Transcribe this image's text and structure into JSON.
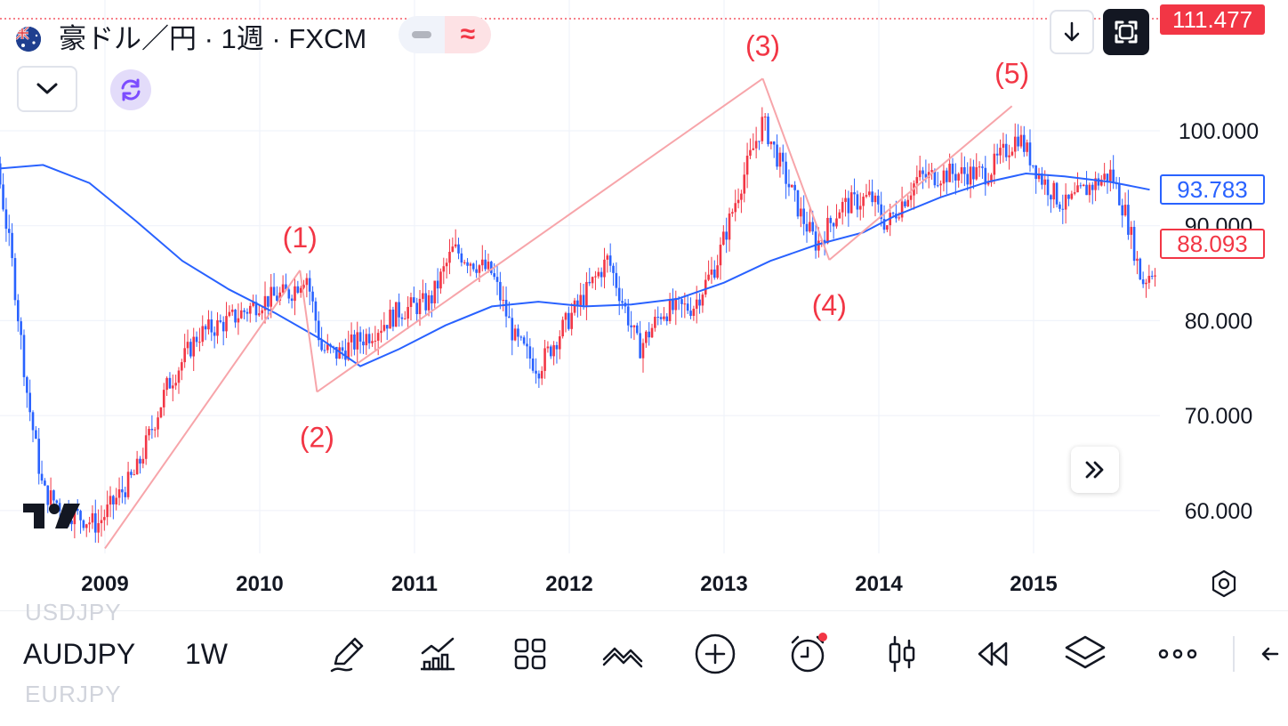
{
  "header": {
    "title": "豪ドル／円 · 1週 · FXCM",
    "flag_icon": "australia-flag-icon",
    "toggle_minus_icon": "minus-icon",
    "toggle_approx": "≈"
  },
  "price_tags": {
    "last": "111.477",
    "ma": "93.783",
    "current": "88.093"
  },
  "colors": {
    "up": "#f23645",
    "down": "#2962ff",
    "ma": "#2962ff",
    "wave": "#f7a5aa",
    "wave_label": "#f23645",
    "grid": "#f0f3fa"
  },
  "chart_data": {
    "type": "candlestick",
    "symbol": "AUDJPY",
    "interval": "1W",
    "y_axis_ticks": [
      "100.000",
      "90.000",
      "80.000",
      "70.000",
      "60.000"
    ],
    "y_axis_values": [
      100,
      90,
      80,
      70,
      60
    ],
    "x_axis_ticks": [
      "2009",
      "2010",
      "2011",
      "2012",
      "2013",
      "2014",
      "2015"
    ],
    "ylim": [
      55.5,
      111.5
    ],
    "moving_average": [
      {
        "t": 2008.0,
        "v": 93.2
      },
      {
        "t": 2008.3,
        "v": 96.0
      },
      {
        "t": 2008.6,
        "v": 96.4
      },
      {
        "t": 2008.9,
        "v": 94.5
      },
      {
        "t": 2009.2,
        "v": 90.5
      },
      {
        "t": 2009.5,
        "v": 86.3
      },
      {
        "t": 2009.8,
        "v": 83.3
      },
      {
        "t": 2010.1,
        "v": 80.8
      },
      {
        "t": 2010.4,
        "v": 78.0
      },
      {
        "t": 2010.65,
        "v": 75.2
      },
      {
        "t": 2010.9,
        "v": 77.0
      },
      {
        "t": 2011.2,
        "v": 79.5
      },
      {
        "t": 2011.5,
        "v": 81.5
      },
      {
        "t": 2011.8,
        "v": 82.0
      },
      {
        "t": 2012.1,
        "v": 81.5
      },
      {
        "t": 2012.4,
        "v": 81.7
      },
      {
        "t": 2012.7,
        "v": 82.3
      },
      {
        "t": 2013.0,
        "v": 84.0
      },
      {
        "t": 2013.3,
        "v": 86.3
      },
      {
        "t": 2013.6,
        "v": 88.0
      },
      {
        "t": 2013.9,
        "v": 89.3
      },
      {
        "t": 2014.1,
        "v": 91.0
      },
      {
        "t": 2014.4,
        "v": 93.0
      },
      {
        "t": 2014.7,
        "v": 94.6
      },
      {
        "t": 2014.95,
        "v": 95.5
      },
      {
        "t": 2015.2,
        "v": 95.2
      },
      {
        "t": 2015.5,
        "v": 94.6
      },
      {
        "t": 2015.75,
        "v": 93.8
      }
    ],
    "price_path": [
      {
        "t": 2007.9,
        "v": 98.0
      },
      {
        "t": 2008.05,
        "v": 101.5
      },
      {
        "t": 2008.2,
        "v": 102.0
      },
      {
        "t": 2008.3,
        "v": 97.0
      },
      {
        "t": 2008.4,
        "v": 86.0
      },
      {
        "t": 2008.5,
        "v": 72.0
      },
      {
        "t": 2008.6,
        "v": 62.0
      },
      {
        "t": 2008.75,
        "v": 60.0
      },
      {
        "t": 2008.95,
        "v": 58.5
      },
      {
        "t": 2009.2,
        "v": 64.0
      },
      {
        "t": 2009.4,
        "v": 73.0
      },
      {
        "t": 2009.6,
        "v": 78.5
      },
      {
        "t": 2009.8,
        "v": 80.0
      },
      {
        "t": 2010.0,
        "v": 82.0
      },
      {
        "t": 2010.2,
        "v": 83.0
      },
      {
        "t": 2010.3,
        "v": 85.0
      },
      {
        "t": 2010.4,
        "v": 77.0
      },
      {
        "t": 2010.5,
        "v": 76.5
      },
      {
        "t": 2010.7,
        "v": 78.5
      },
      {
        "t": 2010.9,
        "v": 81.0
      },
      {
        "t": 2011.1,
        "v": 82.0
      },
      {
        "t": 2011.25,
        "v": 87.5
      },
      {
        "t": 2011.5,
        "v": 85.0
      },
      {
        "t": 2011.65,
        "v": 78.0
      },
      {
        "t": 2011.8,
        "v": 75.0
      },
      {
        "t": 2011.95,
        "v": 79.0
      },
      {
        "t": 2012.15,
        "v": 84.0
      },
      {
        "t": 2012.25,
        "v": 86.5
      },
      {
        "t": 2012.45,
        "v": 77.0
      },
      {
        "t": 2012.6,
        "v": 81.0
      },
      {
        "t": 2012.8,
        "v": 81.5
      },
      {
        "t": 2012.95,
        "v": 86.0
      },
      {
        "t": 2013.1,
        "v": 94.0
      },
      {
        "t": 2013.25,
        "v": 101.0
      },
      {
        "t": 2013.35,
        "v": 97.0
      },
      {
        "t": 2013.5,
        "v": 91.0
      },
      {
        "t": 2013.6,
        "v": 88.0
      },
      {
        "t": 2013.75,
        "v": 92.0
      },
      {
        "t": 2013.95,
        "v": 93.0
      },
      {
        "t": 2014.05,
        "v": 90.0
      },
      {
        "t": 2014.25,
        "v": 95.0
      },
      {
        "t": 2014.45,
        "v": 95.5
      },
      {
        "t": 2014.7,
        "v": 95.5
      },
      {
        "t": 2014.9,
        "v": 99.5
      },
      {
        "t": 2015.05,
        "v": 95.0
      },
      {
        "t": 2015.2,
        "v": 92.0
      },
      {
        "t": 2015.35,
        "v": 94.0
      },
      {
        "t": 2015.5,
        "v": 95.5
      },
      {
        "t": 2015.6,
        "v": 91.0
      },
      {
        "t": 2015.7,
        "v": 84.0
      },
      {
        "t": 2015.8,
        "v": 86.0
      }
    ],
    "elliott_waves": [
      {
        "label": "(1)",
        "t": 2010.26,
        "v": 85.3
      },
      {
        "label": "(2)",
        "t": 2010.37,
        "v": 72.5
      },
      {
        "label": "(3)",
        "t": 2013.25,
        "v": 105.5
      },
      {
        "label": "(4)",
        "t": 2013.68,
        "v": 86.4
      },
      {
        "label": "(5)",
        "t": 2014.86,
        "v": 102.6
      }
    ],
    "wave_lines": [
      {
        "from": {
          "t": 2009.0,
          "v": 56.0
        },
        "to": {
          "t": 2010.26,
          "v": 85.3
        }
      },
      {
        "from": {
          "t": 2010.26,
          "v": 85.3
        },
        "to": {
          "t": 2010.37,
          "v": 72.5
        }
      },
      {
        "from": {
          "t": 2010.37,
          "v": 72.5
        },
        "to": {
          "t": 2013.25,
          "v": 105.5
        }
      },
      {
        "from": {
          "t": 2013.25,
          "v": 105.5
        },
        "to": {
          "t": 2013.68,
          "v": 86.4
        }
      },
      {
        "from": {
          "t": 2013.68,
          "v": 86.4
        },
        "to": {
          "t": 2014.86,
          "v": 102.6
        }
      }
    ]
  },
  "bottom_bar": {
    "symbol": "AUDJPY",
    "timeframe": "1W",
    "ghost_above": "USDJPY",
    "ghost_below": "EURJPY",
    "tools": [
      {
        "name": "draw-tool-icon"
      },
      {
        "name": "indicators-icon"
      },
      {
        "name": "layout-grid-icon"
      },
      {
        "name": "compare-icon"
      },
      {
        "name": "add-icon"
      },
      {
        "name": "alert-clock-icon"
      },
      {
        "name": "candle-style-icon"
      },
      {
        "name": "replay-icon"
      },
      {
        "name": "layers-icon"
      },
      {
        "name": "more-icon"
      },
      {
        "name": "back-arrow-icon"
      }
    ]
  }
}
